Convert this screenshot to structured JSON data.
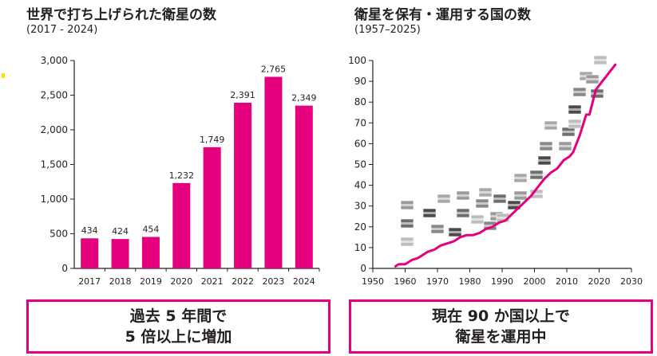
{
  "left_title": "世界で打ち上げられた衛星の数",
  "left_subtitle": "(2017 - 2024)",
  "right_title": "衛星を保有・運用する国の数",
  "right_subtitle": "(1957–2025)",
  "left_caption": {
    "line1": "過去 5 年間で",
    "line2": "5 倍以上に増加"
  },
  "right_caption": {
    "line1": "現在 90 か国以上で",
    "line2": "衛星を運用中"
  },
  "colors": {
    "accent": "#e5007e",
    "text": "#231f20",
    "marker": "#ffe100"
  },
  "chart_data": [
    {
      "type": "bar",
      "title": "世界で打ち上げられた衛星の数",
      "subtitle": "(2017 - 2024)",
      "categories": [
        "2017",
        "2018",
        "2019",
        "2020",
        "2021",
        "2022",
        "2023",
        "2024"
      ],
      "values": [
        434,
        424,
        454,
        1232,
        1749,
        2391,
        2765,
        2349
      ],
      "value_labels": [
        "434",
        "424",
        "454",
        "1,232",
        "1,749",
        "2,391",
        "2,765",
        "2,349"
      ],
      "ylim": [
        0,
        3000
      ],
      "yticks": [
        0,
        500,
        1000,
        1500,
        2000,
        2500,
        3000
      ],
      "ytick_labels": [
        "0",
        "500",
        "1,000",
        "1,500",
        "2,000",
        "2,500",
        "3,000"
      ],
      "xlabel": "",
      "ylabel": "",
      "grid": false
    },
    {
      "type": "line",
      "title": "衛星を保有・運用する国の数",
      "subtitle": "(1957–2025)",
      "x": [
        1957,
        1958,
        1960,
        1962,
        1964,
        1965,
        1967,
        1969,
        1970,
        1971,
        1973,
        1975,
        1977,
        1979,
        1981,
        1983,
        1985,
        1987,
        1989,
        1991,
        1993,
        1995,
        1997,
        1999,
        2001,
        2003,
        2005,
        2007,
        2009,
        2011,
        2012,
        2013,
        2014,
        2015,
        2016,
        2017,
        2018,
        2019,
        2020,
        2021,
        2022,
        2023,
        2024,
        2025
      ],
      "y": [
        1,
        2,
        2,
        4,
        5,
        6,
        8,
        9,
        10,
        11,
        12,
        13,
        15,
        16,
        16,
        17,
        19,
        20,
        22,
        23,
        26,
        29,
        32,
        35,
        39,
        43,
        46,
        48,
        52,
        54,
        56,
        60,
        64,
        69,
        74,
        74,
        80,
        86,
        88,
        90,
        92,
        94,
        96,
        98
      ],
      "xlim": [
        1950,
        2030
      ],
      "xticks": [
        1950,
        1960,
        1970,
        1980,
        1990,
        2000,
        2010,
        2020,
        2030
      ],
      "ylim": [
        0,
        100
      ],
      "yticks": [
        0,
        10,
        20,
        30,
        40,
        50,
        60,
        70,
        80,
        90,
        100
      ],
      "annotation": "country flags placed along the curve",
      "xlabel": "",
      "ylabel": "",
      "grid": false
    }
  ]
}
